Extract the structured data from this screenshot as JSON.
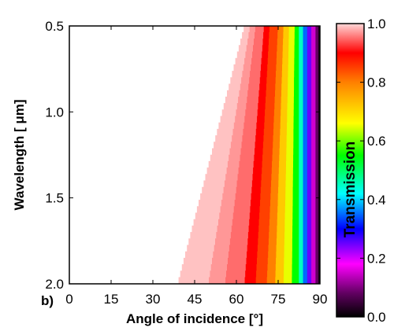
{
  "chart_data": {
    "type": "heatmap",
    "panel_label": "b)",
    "xlabel": "Angle of incidence [°]",
    "ylabel": "Wavelength [ μm]",
    "xlim": [
      0,
      90
    ],
    "ylim": [
      0.5,
      2.0
    ],
    "y_reversed": true,
    "xticks": [
      "0",
      "15",
      "30",
      "45",
      "60",
      "75",
      "90"
    ],
    "yticks": [
      "0.5",
      "1.0",
      "1.5",
      "2.0"
    ],
    "colorbar": {
      "label": "Transmission",
      "range": [
        0.0,
        1.0
      ],
      "ticks": [
        "0.0",
        "0.2",
        "0.4",
        "0.6",
        "0.8",
        "1.0"
      ]
    },
    "colormap_stops": [
      {
        "v": 0.0,
        "color": "#000000"
      },
      {
        "v": 0.08,
        "color": "#600060"
      },
      {
        "v": 0.18,
        "color": "#ff00ff"
      },
      {
        "v": 0.3,
        "color": "#0000ff"
      },
      {
        "v": 0.42,
        "color": "#00ffff"
      },
      {
        "v": 0.55,
        "color": "#00ff00"
      },
      {
        "v": 0.66,
        "color": "#ffff00"
      },
      {
        "v": 0.8,
        "color": "#ff8000"
      },
      {
        "v": 0.9,
        "color": "#ff0000"
      },
      {
        "v": 1.0,
        "color": "#ffd8d8"
      }
    ],
    "contours": [
      {
        "transmission": 0.99,
        "angle_at_0_5um": 63,
        "angle_at_2_0um": 39
      },
      {
        "transmission": 0.97,
        "angle_at_0_5um": 65,
        "angle_at_2_0um": 50
      },
      {
        "transmission": 0.95,
        "angle_at_0_5um": 67,
        "angle_at_2_0um": 56
      },
      {
        "transmission": 0.9,
        "angle_at_0_5um": 70,
        "angle_at_2_0um": 63
      },
      {
        "transmission": 0.85,
        "angle_at_0_5um": 72,
        "angle_at_2_0um": 67
      },
      {
        "transmission": 0.8,
        "angle_at_0_5um": 75,
        "angle_at_2_0um": 71
      },
      {
        "transmission": 0.72,
        "angle_at_0_5um": 77,
        "angle_at_2_0um": 74
      },
      {
        "transmission": 0.65,
        "angle_at_0_5um": 79,
        "angle_at_2_0um": 77
      },
      {
        "transmission": 0.55,
        "angle_at_0_5um": 81,
        "angle_at_2_0um": 80
      },
      {
        "transmission": 0.45,
        "angle_at_0_5um": 82.5,
        "angle_at_2_0um": 82.5
      },
      {
        "transmission": 0.35,
        "angle_at_0_5um": 84,
        "angle_at_2_0um": 84
      },
      {
        "transmission": 0.25,
        "angle_at_0_5um": 85.5,
        "angle_at_2_0um": 85.5
      },
      {
        "transmission": 0.15,
        "angle_at_0_5um": 87,
        "angle_at_2_0um": 87
      },
      {
        "transmission": 0.08,
        "angle_at_0_5um": 88.5,
        "angle_at_2_0um": 88.5
      },
      {
        "transmission": 0.02,
        "angle_at_0_5um": 89.5,
        "angle_at_2_0um": 89.5
      },
      {
        "transmission": 0.0,
        "angle_at_0_5um": 90,
        "angle_at_2_0um": 90
      }
    ]
  }
}
